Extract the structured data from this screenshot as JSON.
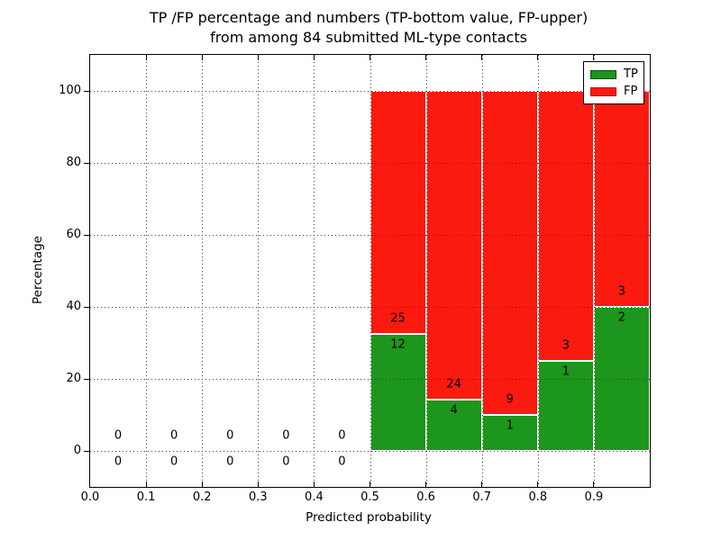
{
  "chart_data": {
    "type": "bar",
    "stacked": true,
    "title_line1": "TP /FP percentage and numbers (TP-bottom value, FP-upper)",
    "title_line2": "from among 84 submitted ML-type contacts",
    "xlabel": "Predicted probability",
    "ylabel": "Percentage",
    "xlim": [
      0.0,
      1.0
    ],
    "ylim": [
      -10,
      110
    ],
    "grid": "dotted",
    "xticks": [
      {
        "v": 0.0,
        "label": "0.0"
      },
      {
        "v": 0.1,
        "label": "0.1"
      },
      {
        "v": 0.2,
        "label": "0.2"
      },
      {
        "v": 0.3,
        "label": "0.3"
      },
      {
        "v": 0.4,
        "label": "0.4"
      },
      {
        "v": 0.5,
        "label": "0.5"
      },
      {
        "v": 0.6,
        "label": "0.6"
      },
      {
        "v": 0.7,
        "label": "0.7"
      },
      {
        "v": 0.8,
        "label": "0.8"
      },
      {
        "v": 0.9,
        "label": "0.9"
      }
    ],
    "yticks": [
      {
        "v": 0,
        "label": "0"
      },
      {
        "v": 20,
        "label": "20"
      },
      {
        "v": 40,
        "label": "40"
      },
      {
        "v": 60,
        "label": "60"
      },
      {
        "v": 80,
        "label": "80"
      },
      {
        "v": 100,
        "label": "100"
      }
    ],
    "legend": {
      "position": "upper-right",
      "entries": [
        {
          "label": "TP",
          "color": "#1d961d",
          "edge": "#0b4f0b"
        },
        {
          "label": "FP",
          "color": "#fb1a10",
          "edge": "#c00d06"
        }
      ]
    },
    "colors": {
      "tp_fill": "#1d961d",
      "fp_fill": "#fb1a10"
    },
    "bins": [
      {
        "range": [
          0.0,
          0.1
        ],
        "tp_count": 0,
        "fp_count": 0,
        "tp_pct": 0,
        "fp_pct": 0
      },
      {
        "range": [
          0.1,
          0.2
        ],
        "tp_count": 0,
        "fp_count": 0,
        "tp_pct": 0,
        "fp_pct": 0
      },
      {
        "range": [
          0.2,
          0.3
        ],
        "tp_count": 0,
        "fp_count": 0,
        "tp_pct": 0,
        "fp_pct": 0
      },
      {
        "range": [
          0.3,
          0.4
        ],
        "tp_count": 0,
        "fp_count": 0,
        "tp_pct": 0,
        "fp_pct": 0
      },
      {
        "range": [
          0.4,
          0.5
        ],
        "tp_count": 0,
        "fp_count": 0,
        "tp_pct": 0,
        "fp_pct": 0
      },
      {
        "range": [
          0.5,
          0.6
        ],
        "tp_count": 12,
        "fp_count": 25,
        "tp_pct": 32.43,
        "fp_pct": 67.57
      },
      {
        "range": [
          0.6,
          0.7
        ],
        "tp_count": 4,
        "fp_count": 24,
        "tp_pct": 14.29,
        "fp_pct": 85.71
      },
      {
        "range": [
          0.7,
          0.8
        ],
        "tp_count": 1,
        "fp_count": 9,
        "tp_pct": 10,
        "fp_pct": 90
      },
      {
        "range": [
          0.8,
          0.9
        ],
        "tp_count": 1,
        "fp_count": 3,
        "tp_pct": 25,
        "fp_pct": 75
      },
      {
        "range": [
          0.9,
          1.0
        ],
        "tp_count": 2,
        "fp_count": 3,
        "tp_pct": 40,
        "fp_pct": 60
      }
    ]
  }
}
